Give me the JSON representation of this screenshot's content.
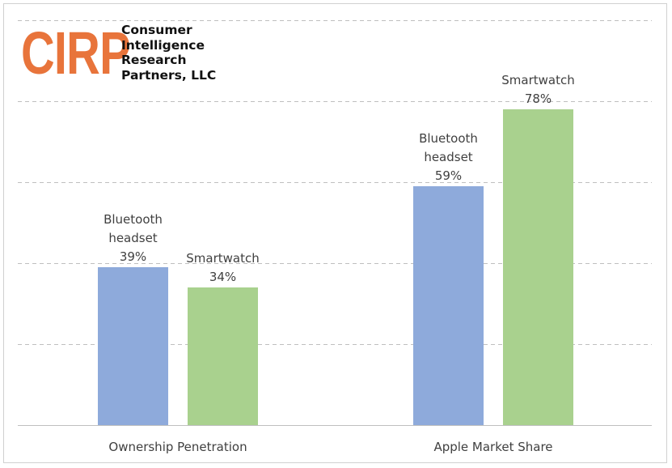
{
  "logo": {
    "mark": "CIRP",
    "lines": [
      "Consumer",
      "Intelligence",
      "Research",
      "Partners, LLC"
    ]
  },
  "colors": {
    "bluetooth": "#8eaadb",
    "smartwatch": "#a9d18e",
    "logo": "#e8743b",
    "grid": "#bfbfbf",
    "axis": "#bfbfbf",
    "text": "#404040"
  },
  "chart_data": {
    "type": "bar",
    "title": "",
    "xlabel": "",
    "ylabel": "",
    "categories": [
      "Ownership Penetration",
      "Apple Market Share"
    ],
    "series": [
      {
        "name": "Bluetooth headset",
        "values": [
          39,
          59
        ],
        "labels": [
          [
            "Bluetooth",
            "headset",
            "39%"
          ],
          [
            "Bluetooth",
            "headset",
            "59%"
          ]
        ]
      },
      {
        "name": "Smartwatch",
        "values": [
          34,
          78
        ],
        "labels": [
          [
            "Smartwatch",
            "34%"
          ],
          [
            "Smartwatch",
            "78%"
          ]
        ]
      }
    ],
    "ylim": [
      0,
      100
    ],
    "gridlines": [
      20,
      40,
      60,
      80,
      100
    ],
    "grid": true,
    "grid_style": "dashed",
    "legend": "none"
  }
}
